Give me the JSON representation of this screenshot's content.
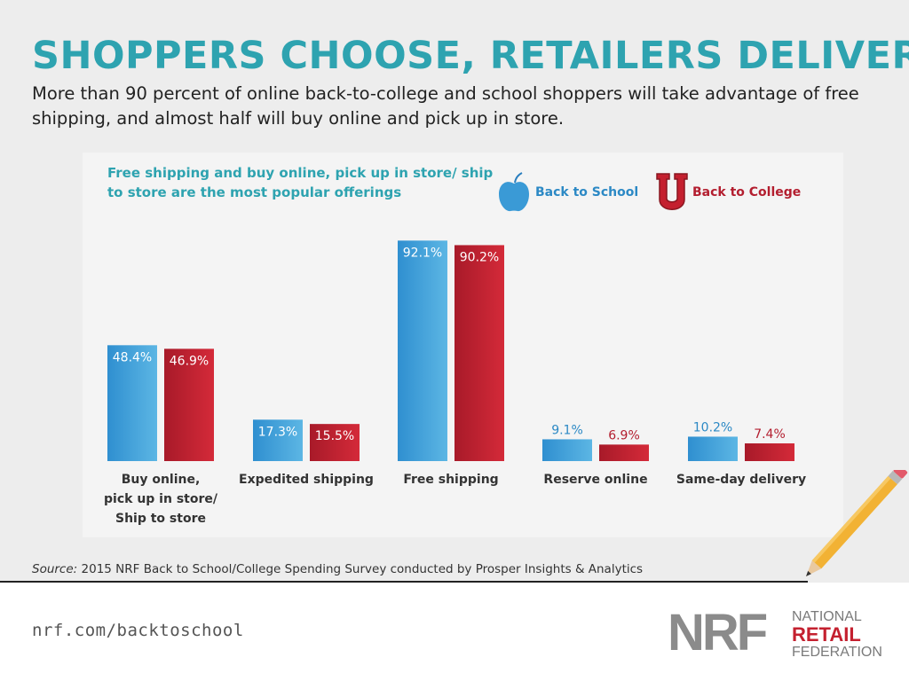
{
  "header": {
    "title": "SHOPPERS CHOOSE, RETAILERS DELIVER",
    "subtitle": "More than 90 percent of online back-to-college and school shoppers will take advantage of free shipping, and almost half will buy online and pick up in store."
  },
  "legend": {
    "school_label": "Back to School",
    "college_label": "Back to College"
  },
  "colors": {
    "teal": "#2ea3b0",
    "school_blue": "#3a9ad6",
    "college_red": "#c4202f"
  },
  "chart_data": {
    "type": "bar",
    "title": "Free shipping and buy online, pick up in store/ ship to store are the most popular offerings",
    "categories": [
      [
        "Buy online,",
        "pick up in store/",
        "Ship to store"
      ],
      [
        "Expedited shipping"
      ],
      [
        "Free shipping"
      ],
      [
        "Reserve online"
      ],
      [
        "Same-day delivery"
      ]
    ],
    "series": [
      {
        "name": "Back to School",
        "values": [
          48.4,
          17.3,
          92.1,
          9.1,
          10.2
        ],
        "labels": [
          "48.4%",
          "17.3%",
          "92.1%",
          "9.1%",
          "10.2%"
        ]
      },
      {
        "name": "Back to College",
        "values": [
          46.9,
          15.5,
          90.2,
          6.9,
          7.4
        ],
        "labels": [
          "46.9%",
          "15.5%",
          "90.2%",
          "6.9%",
          "7.4%"
        ]
      }
    ],
    "ylim": [
      0,
      100
    ],
    "grid": false,
    "legend_position": "top-right"
  },
  "source": {
    "prefix": "Source:",
    "text": " 2015 NRF Back to School/College Spending Survey conducted by Prosper Insights & Analytics"
  },
  "footer": {
    "url": "nrf.com/backtoschool",
    "logo_letters": "NRF",
    "logo_line1": "NATIONAL",
    "logo_line2": "RETAIL",
    "logo_line3": "FEDERATION"
  }
}
